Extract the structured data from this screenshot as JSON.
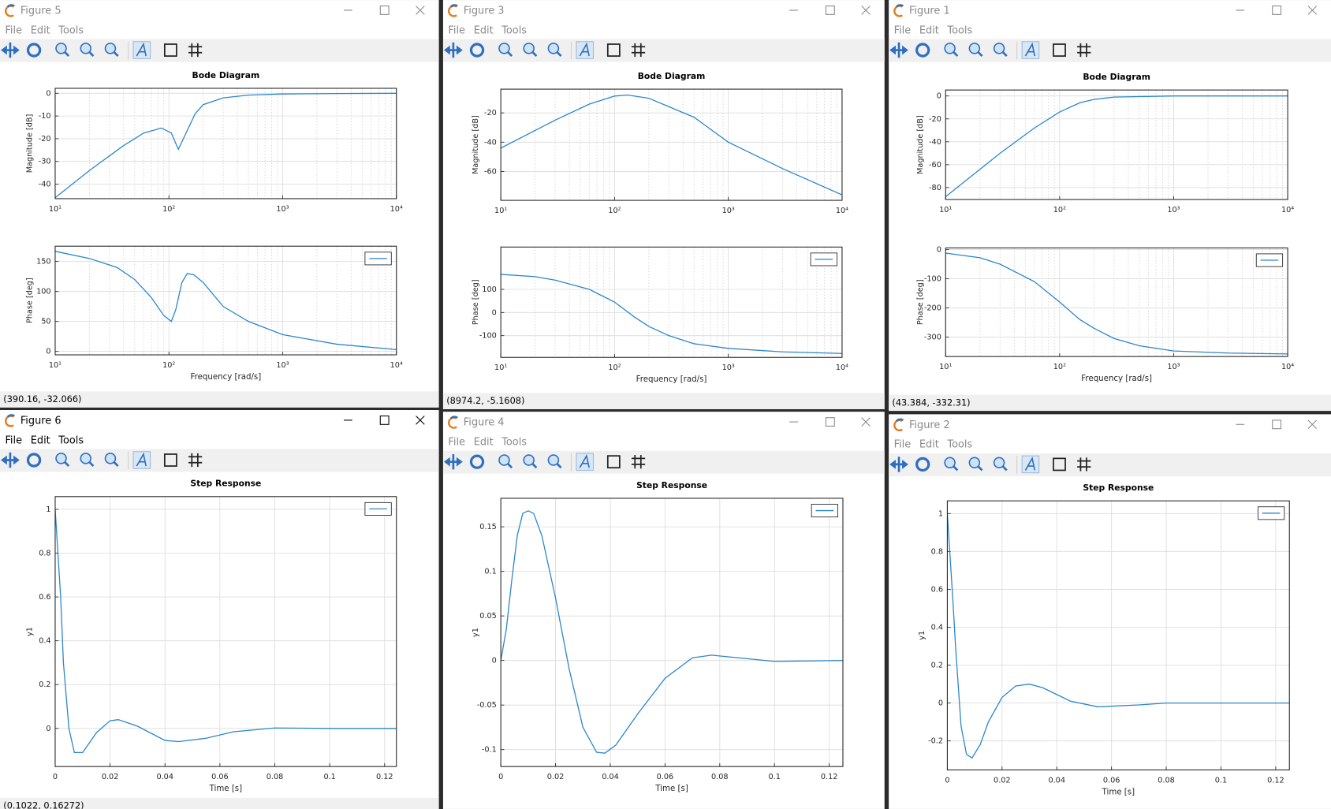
{
  "windows": [
    {
      "title": "Figure 5",
      "menu": [
        "File",
        "Edit",
        "Tools"
      ],
      "status": "(390.16, -32.066)",
      "active": false,
      "chart_data": [
        {
          "type": "line",
          "title": "Bode Diagram",
          "ylabel": "Magnitude [dB]",
          "xscale": "log",
          "grid": true,
          "minor_grid": true,
          "x": [
            10,
            20,
            40,
            60,
            86,
            105,
            121,
            140,
            170,
            200,
            300,
            500,
            1000,
            3000,
            10000
          ],
          "series": [
            {
              "color": "#2a86cc",
              "values": [
                -46,
                -34,
                -23,
                -17.5,
                -15.3,
                -17.5,
                -24.7,
                -18,
                -9,
                -5,
                -2,
                -0.8,
                -0.3,
                -0.1,
                0
              ]
            }
          ],
          "xlim": [
            10,
            10000
          ],
          "ylim": [
            -46.4,
            2.2
          ],
          "xticks": [
            {
              "value": 10,
              "label": "10¹"
            },
            {
              "value": 100,
              "label": "10²"
            },
            {
              "value": 1000,
              "label": "10³"
            },
            {
              "value": 10000,
              "label": "10⁴"
            }
          ],
          "yticks": [
            0,
            -10,
            -20,
            -30,
            -40
          ]
        },
        {
          "type": "line",
          "xlabel": "Frequency [rad/s]",
          "ylabel": "Phase [deg]",
          "xscale": "log",
          "grid": true,
          "minor_grid": true,
          "legend": "upper right",
          "x": [
            10,
            20,
            35,
            50,
            70,
            90,
            105,
            115,
            130,
            145,
            165,
            200,
            300,
            500,
            1000,
            3000,
            10000
          ],
          "series": [
            {
              "color": "#2a86cc",
              "values": [
                167,
                155,
                140,
                120,
                90,
                60,
                50,
                70,
                115,
                130,
                128,
                115,
                75,
                50,
                28,
                12,
                3
              ]
            }
          ],
          "xlim": [
            10,
            10000
          ],
          "ylim": [
            -5.7,
            175.5
          ],
          "xticks": [
            {
              "value": 10,
              "label": "10¹"
            },
            {
              "value": 100,
              "label": "10²"
            },
            {
              "value": 1000,
              "label": "10³"
            },
            {
              "value": 10000,
              "label": "10⁴"
            }
          ],
          "yticks": [
            0,
            50,
            100,
            150
          ]
        }
      ]
    },
    {
      "title": "Figure 3",
      "menu": [
        "File",
        "Edit",
        "Tools"
      ],
      "status": "(8974.2, -5.1608)",
      "active": false,
      "chart_data": [
        {
          "type": "line",
          "title": "Bode Diagram",
          "ylabel": "Magnitude [dB]",
          "xscale": "log",
          "grid": true,
          "minor_grid": true,
          "x": [
            10,
            30,
            60,
            100,
            130,
            200,
            500,
            1000,
            3000,
            10000
          ],
          "series": [
            {
              "color": "#2a86cc",
              "values": [
                -44,
                -25,
                -14,
                -8.5,
                -7.8,
                -10,
                -23,
                -40,
                -58,
                -76
              ]
            }
          ],
          "xlim": [
            10,
            10000
          ],
          "ylim": [
            -79.7,
            -3.8
          ],
          "xticks": [
            {
              "value": 10,
              "label": "10¹"
            },
            {
              "value": 100,
              "label": "10²"
            },
            {
              "value": 1000,
              "label": "10³"
            },
            {
              "value": 10000,
              "label": "10⁴"
            }
          ],
          "yticks": [
            -20,
            -40,
            -60
          ]
        },
        {
          "type": "line",
          "xlabel": "Frequency [rad/s]",
          "ylabel": "Phase [deg]",
          "xscale": "log",
          "grid": true,
          "minor_grid": true,
          "legend": "upper right",
          "x": [
            10,
            20,
            30,
            60,
            100,
            150,
            200,
            300,
            500,
            1000,
            3000,
            10000
          ],
          "series": [
            {
              "color": "#2a86cc",
              "values": [
                165,
                155,
                140,
                100,
                45,
                -20,
                -60,
                -100,
                -135,
                -155,
                -170,
                -177
              ]
            }
          ],
          "xlim": [
            10,
            10000
          ],
          "ylim": [
            -194,
            283
          ],
          "xticks": [
            {
              "value": 10,
              "label": "10¹"
            },
            {
              "value": 100,
              "label": "10²"
            },
            {
              "value": 1000,
              "label": "10³"
            },
            {
              "value": 10000,
              "label": "10⁴"
            }
          ],
          "yticks": [
            100,
            0,
            -100
          ]
        }
      ]
    },
    {
      "title": "Figure 1",
      "menu": [
        "File",
        "Edit",
        "Tools"
      ],
      "status": "(43.384, -332.31)",
      "active": false,
      "chart_data": [
        {
          "type": "line",
          "title": "Bode Diagram",
          "ylabel": "Magnitude [dB]",
          "xscale": "log",
          "grid": true,
          "minor_grid": true,
          "x": [
            10,
            30,
            60,
            100,
            150,
            200,
            300,
            1000,
            10000
          ],
          "series": [
            {
              "color": "#2a86cc",
              "values": [
                -88,
                -50,
                -28,
                -14,
                -6,
                -3,
                -1,
                0,
                0
              ]
            }
          ],
          "xlim": [
            10,
            10000
          ],
          "ylim": [
            -90.4,
            5.2
          ],
          "xticks": [
            {
              "value": 10,
              "label": "10¹"
            },
            {
              "value": 100,
              "label": "10²"
            },
            {
              "value": 1000,
              "label": "10³"
            },
            {
              "value": 10000,
              "label": "10⁴"
            }
          ],
          "yticks": [
            0,
            -20,
            -40,
            -60,
            -80
          ]
        },
        {
          "type": "line",
          "xlabel": "Frequency [rad/s]",
          "ylabel": "Phase [deg]",
          "xscale": "log",
          "grid": true,
          "minor_grid": true,
          "legend": "upper right",
          "x": [
            10,
            20,
            30,
            60,
            100,
            150,
            200,
            300,
            500,
            1000,
            3000,
            10000
          ],
          "series": [
            {
              "color": "#2a86cc",
              "values": [
                -12,
                -28,
                -50,
                -110,
                -180,
                -240,
                -270,
                -305,
                -330,
                -348,
                -355,
                -358
              ]
            }
          ],
          "xlim": [
            10,
            10000
          ],
          "ylim": [
            -367,
            5.8
          ],
          "xticks": [
            {
              "value": 10,
              "label": "10¹"
            },
            {
              "value": 100,
              "label": "10²"
            },
            {
              "value": 1000,
              "label": "10³"
            },
            {
              "value": 10000,
              "label": "10⁴"
            }
          ],
          "yticks": [
            0,
            -100,
            -200,
            -300
          ]
        }
      ]
    },
    {
      "title": "Figure 6",
      "menu": [
        "File",
        "Edit",
        "Tools"
      ],
      "status": "(0.1022, 0.16272)",
      "active": true,
      "chart_data": [
        {
          "type": "line",
          "title": "Step Response",
          "xlabel": "Time [s]",
          "ylabel": "y1",
          "grid": true,
          "legend": "upper right",
          "x": [
            0,
            0.002,
            0.003,
            0.005,
            0.007,
            0.01,
            0.015,
            0.02,
            0.023,
            0.03,
            0.04,
            0.045,
            0.055,
            0.065,
            0.08,
            0.1,
            0.1243
          ],
          "series": [
            {
              "color": "#2a86cc",
              "values": [
                1,
                0.6,
                0.3,
                0,
                -0.11,
                -0.11,
                -0.02,
                0.035,
                0.04,
                0.01,
                -0.055,
                -0.06,
                -0.045,
                -0.015,
                0.002,
                0,
                0
              ]
            }
          ],
          "xlim": [
            0,
            0.1243
          ],
          "ylim": [
            -0.174,
            1.058
          ],
          "xticks": [
            0,
            0.02,
            0.04,
            0.06,
            0.08,
            0.1,
            0.12
          ],
          "yticks": [
            0,
            0.2,
            0.4,
            0.6,
            0.8,
            1
          ]
        }
      ]
    },
    {
      "title": "Figure 4",
      "menu": [
        "File",
        "Edit",
        "Tools"
      ],
      "active": false,
      "chart_data": [
        {
          "type": "line",
          "title": "Step Response",
          "xlabel": "Time [s]",
          "ylabel": "y1",
          "grid": true,
          "legend": "upper right",
          "x": [
            0,
            0.002,
            0.004,
            0.006,
            0.008,
            0.01,
            0.012,
            0.015,
            0.02,
            0.025,
            0.03,
            0.035,
            0.038,
            0.042,
            0.05,
            0.06,
            0.07,
            0.077,
            0.09,
            0.1,
            0.125
          ],
          "series": [
            {
              "color": "#2a86cc",
              "values": [
                0,
                0.035,
                0.09,
                0.14,
                0.165,
                0.168,
                0.165,
                0.14,
                0.07,
                -0.01,
                -0.075,
                -0.103,
                -0.104,
                -0.095,
                -0.06,
                -0.02,
                0.003,
                0.006,
                0.002,
                -0.001,
                0
              ]
            }
          ],
          "xlim": [
            0,
            0.125
          ],
          "ylim": [
            -0.119,
            0.182
          ],
          "xticks": [
            0,
            0.02,
            0.04,
            0.06,
            0.08,
            0.1,
            0.12
          ],
          "yticks": [
            -0.1,
            -0.05,
            0,
            0.05,
            0.1,
            0.15
          ]
        }
      ]
    },
    {
      "title": "Figure 2",
      "menu": [
        "File",
        "Edit",
        "Tools"
      ],
      "active": false,
      "chart_data": [
        {
          "type": "line",
          "title": "Step Response",
          "xlabel": "Time [s]",
          "ylabel": "y1",
          "grid": true,
          "legend": "upper right",
          "x": [
            0,
            0.002,
            0.003,
            0.005,
            0.007,
            0.009,
            0.012,
            0.015,
            0.02,
            0.025,
            0.03,
            0.035,
            0.045,
            0.055,
            0.07,
            0.08,
            0.125
          ],
          "series": [
            {
              "color": "#2a86cc",
              "values": [
                1,
                0.55,
                0.3,
                -0.12,
                -0.27,
                -0.29,
                -0.22,
                -0.1,
                0.03,
                0.09,
                0.1,
                0.08,
                0.01,
                -0.02,
                -0.01,
                0,
                0
              ]
            }
          ],
          "xlim": [
            0,
            0.125
          ],
          "ylim": [
            -0.353,
            1.067
          ],
          "xticks": [
            0,
            0.02,
            0.04,
            0.06,
            0.08,
            0.1,
            0.12
          ],
          "yticks": [
            -0.2,
            0,
            0.2,
            0.4,
            0.6,
            0.8,
            1
          ]
        }
      ]
    }
  ]
}
